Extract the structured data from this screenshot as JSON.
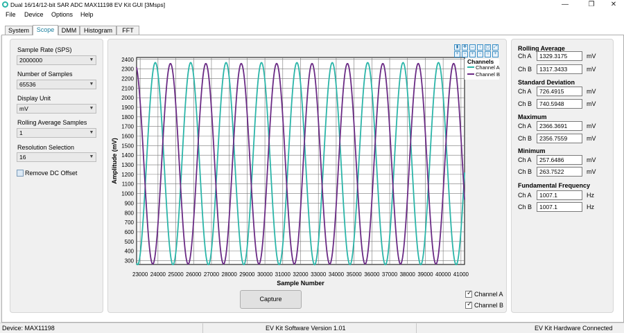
{
  "window": {
    "title": "Dual 16/14/12-bit SAR ADC MAX11198 EV Kit GUI [3Msps]",
    "minimize": "—",
    "maximize": "❐",
    "close": "✕"
  },
  "menu": [
    "File",
    "Device",
    "Options",
    "Help"
  ],
  "tabs": [
    {
      "label": "System",
      "active": false
    },
    {
      "label": "Scope",
      "active": true
    },
    {
      "label": "DMM",
      "active": false
    },
    {
      "label": "Histogram",
      "active": false
    },
    {
      "label": "FFT",
      "active": false
    }
  ],
  "controls": {
    "sample_rate": {
      "label": "Sample Rate (SPS)",
      "value": "2000000"
    },
    "num_samples": {
      "label": "Number of Samples",
      "value": "65536"
    },
    "display_unit": {
      "label": "Display Unit",
      "value": "mV"
    },
    "rolling_avg": {
      "label": "Rolling Average Samples",
      "value": "1"
    },
    "resolution": {
      "label": "Resolution Selection",
      "value": "16"
    },
    "remove_dc": {
      "label": "Remove DC Offset",
      "checked": false
    }
  },
  "chart_toolbar": {
    "row1": [
      "pause-icon",
      "pan-icon",
      "zoom-x-icon",
      "zoom-y-icon",
      "zoom-box-icon",
      "zoom-fit-icon"
    ],
    "row2": [
      "zoom-in-icon",
      "zoom-out-icon",
      "zoom-in-x-icon",
      "zoom-out-x-icon",
      "zoom-reset-icon",
      "crosshair-icon"
    ]
  },
  "chart_data": {
    "type": "line",
    "xlabel": "Sample Number",
    "ylabel": "Amplitude (mV)",
    "xlim": [
      22800,
      41200
    ],
    "ylim": [
      260,
      2420
    ],
    "xticks": [
      23000,
      24000,
      25000,
      26000,
      27000,
      28000,
      29000,
      30000,
      31000,
      32000,
      33000,
      34000,
      35000,
      36000,
      37000,
      38000,
      39000,
      40000,
      41000
    ],
    "yticks": [
      300,
      400,
      500,
      600,
      700,
      800,
      900,
      1000,
      1100,
      1200,
      1300,
      1400,
      1500,
      1600,
      1700,
      1800,
      1900,
      2000,
      2100,
      2200,
      2300,
      2400
    ],
    "grid": true,
    "legend_title": "Channels",
    "legend_position": "top-right",
    "series": [
      {
        "name": "Channel A",
        "color": "#2ab5a8",
        "min": 257.6,
        "max": 2366.4,
        "period_samples": 1986,
        "first_peak_sample": 23850
      },
      {
        "name": "Channel B",
        "color": "#6a2a84",
        "min": 263.8,
        "max": 2356.8,
        "period_samples": 1986,
        "first_peak_sample": 24700
      }
    ]
  },
  "capture_label": "Capture",
  "channel_checks": [
    {
      "label": "Channel A",
      "checked": true
    },
    {
      "label": "Channel B",
      "checked": true
    }
  ],
  "stats": {
    "rolling_average": {
      "title": "Rolling Average",
      "a": "1329.3175",
      "b": "1317.3433",
      "unit": "mV"
    },
    "std_dev": {
      "title": "Standard Deviation",
      "a": "726.4915",
      "b": "740.5948",
      "unit": "mV"
    },
    "maximum": {
      "title": "Maximum",
      "a": "2366.3691",
      "b": "2356.7559",
      "unit": "mV"
    },
    "minimum": {
      "title": "Minimum",
      "a": "257.6486",
      "b": "263.7522",
      "unit": "mV"
    },
    "fund_freq": {
      "title": "Fundamental Frequency",
      "a": "1007.1",
      "b": "1007.1",
      "unit": "Hz"
    },
    "ch_a": "Ch A",
    "ch_b": "Ch B"
  },
  "status": {
    "device": "Device: MAX11198",
    "software": "EV Kit Software Version 1.01",
    "hardware": "EV Kit Hardware Connected"
  }
}
